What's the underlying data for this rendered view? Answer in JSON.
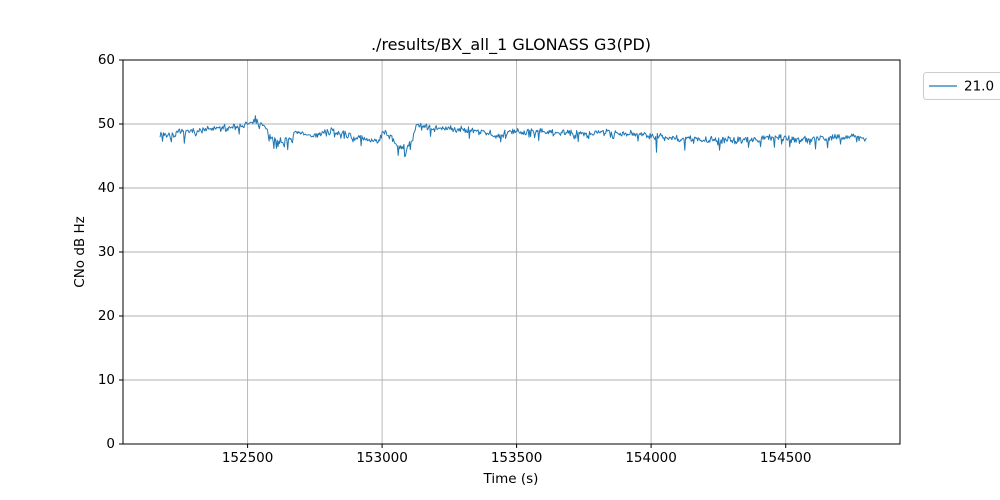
{
  "figure": {
    "background": "#ffffff"
  },
  "chart_data": {
    "type": "line",
    "title": "./results/BX_all_1 GLONASS G3(PD)",
    "xlabel": "Time (s)",
    "ylabel": "CNo dB Hz",
    "xlim": [
      152037,
      154925
    ],
    "ylim": [
      0,
      60
    ],
    "x_ticks": [
      152500,
      153000,
      153500,
      154000,
      154500
    ],
    "x_tick_labels": [
      "152500",
      "153000",
      "153500",
      "154000",
      "154500"
    ],
    "y_ticks": [
      0,
      10,
      20,
      30,
      40,
      50,
      60
    ],
    "y_tick_labels": [
      "0",
      "10",
      "20",
      "30",
      "40",
      "50",
      "60"
    ],
    "grid": true,
    "grid_color": "#b0b0b0",
    "spine_color": "#000000",
    "legend": {
      "position": "upper-right-outside",
      "labels": [
        "21.0"
      ]
    },
    "series": [
      {
        "name": "21.0",
        "color": "#1f77b4",
        "t_start": 152175,
        "t_end": 154800,
        "sample_step_s": 3,
        "noise_amplitude": 0.65,
        "down_spike_prob": 0.07,
        "seed": 7,
        "trend_anchors": [
          [
            152175,
            48.6
          ],
          [
            152205,
            48.2
          ],
          [
            152255,
            48.7
          ],
          [
            152330,
            49.0
          ],
          [
            152420,
            49.4
          ],
          [
            152495,
            49.9
          ],
          [
            152525,
            50.3
          ],
          [
            152555,
            50.0
          ],
          [
            152585,
            48.0
          ],
          [
            152610,
            47.3
          ],
          [
            152645,
            47.4
          ],
          [
            152680,
            48.6
          ],
          [
            152740,
            48.2
          ],
          [
            152810,
            48.8
          ],
          [
            152880,
            48.2
          ],
          [
            152935,
            47.6
          ],
          [
            152980,
            47.4
          ],
          [
            153005,
            48.7
          ],
          [
            153035,
            47.8
          ],
          [
            153065,
            46.4
          ],
          [
            153090,
            46.1
          ],
          [
            153110,
            47.2
          ],
          [
            153125,
            49.6
          ],
          [
            153180,
            49.4
          ],
          [
            153290,
            49.2
          ],
          [
            153380,
            49.0
          ],
          [
            153430,
            47.9
          ],
          [
            153470,
            48.9
          ],
          [
            153560,
            48.8
          ],
          [
            153660,
            48.6
          ],
          [
            153790,
            48.7
          ],
          [
            153900,
            48.6
          ],
          [
            153985,
            48.4
          ],
          [
            154030,
            48.0
          ],
          [
            154100,
            47.7
          ],
          [
            154200,
            47.5
          ],
          [
            154310,
            47.5
          ],
          [
            154400,
            47.7
          ],
          [
            154440,
            48.1
          ],
          [
            154500,
            47.8
          ],
          [
            154560,
            47.5
          ],
          [
            154620,
            47.7
          ],
          [
            154700,
            47.9
          ],
          [
            154760,
            48.1
          ],
          [
            154800,
            47.4
          ]
        ],
        "spikes": [
          [
            152183,
            47.3
          ],
          [
            152216,
            47.2
          ],
          [
            152530,
            51.3
          ],
          [
            152606,
            46.2
          ],
          [
            152650,
            46.0
          ],
          [
            153060,
            45.1
          ],
          [
            153085,
            44.9
          ],
          [
            153440,
            47.2
          ],
          [
            154020,
            45.6
          ],
          [
            154125,
            45.9
          ],
          [
            154255,
            45.9
          ],
          [
            154610,
            46.1
          ]
        ]
      }
    ]
  }
}
